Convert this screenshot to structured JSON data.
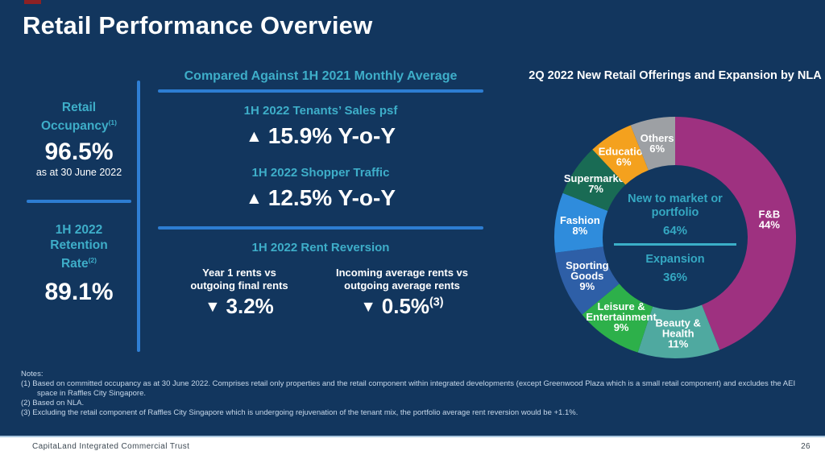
{
  "slide": {
    "title": "Retail Performance Overview",
    "footer_text": "CapitaLand Integrated Commercial Trust",
    "page_number": "26"
  },
  "left_panel": {
    "occupancy_label": "Retail Occupancy",
    "occupancy_sup": "(1)",
    "occupancy_value": "96.5%",
    "occupancy_date": "as at 30 June 2022",
    "retention_label": "1H 2022 Retention Rate",
    "retention_sup": "(2)",
    "retention_value": "89.1%"
  },
  "middle_panel": {
    "header": "Compared Against 1H 2021 Monthly Average",
    "tenants_sales_label": "1H 2022 Tenants’ Sales psf",
    "tenants_sales_value": "15.9% Y-o-Y",
    "shopper_traffic_label": "1H 2022 Shopper Traffic",
    "shopper_traffic_value": "12.5% Y-o-Y",
    "up_icon": "▲",
    "down_icon": "▼",
    "rent_reversion_header": "1H 2022 Rent Reversion",
    "rent_left_label_1": "Year 1 rents vs",
    "rent_left_label_2": "outgoing final rents",
    "rent_left_value": "3.2%",
    "rent_right_label_1": "Incoming average rents vs",
    "rent_right_label_2": "outgoing average rents",
    "rent_right_value": "0.5%",
    "rent_right_sup": "(3)"
  },
  "chart_data": {
    "type": "pie",
    "donut": true,
    "title": "2Q 2022 New Retail Offerings and Expansion by NLA",
    "start_angle_deg": 0,
    "clockwise": true,
    "legend_position": "on-segments",
    "segments": [
      {
        "name": "F&B",
        "label_lines": [
          "F&B"
        ],
        "value": 44,
        "display_value": "44%",
        "color": "#9E3180"
      },
      {
        "name": "Beauty & Health",
        "label_lines": [
          "Beauty &",
          "Health"
        ],
        "value": 11,
        "display_value": "11%",
        "color": "#4FA9A0"
      },
      {
        "name": "Leisure & Entertainment",
        "label_lines": [
          "Leisure &",
          "Entertainment"
        ],
        "value": 9,
        "display_value": "9%",
        "color": "#2DB04A"
      },
      {
        "name": "Sporting Goods",
        "label_lines": [
          "Sporting",
          "Goods"
        ],
        "value": 9,
        "display_value": "9%",
        "color": "#2E5FA7"
      },
      {
        "name": "Fashion",
        "label_lines": [
          "Fashion"
        ],
        "value": 8,
        "display_value": "8%",
        "color": "#2F8CDC"
      },
      {
        "name": "Supermarket",
        "label_lines": [
          "Supermarket"
        ],
        "value": 7,
        "display_value": "7%",
        "color": "#196B54"
      },
      {
        "name": "Education",
        "label_lines": [
          "Education"
        ],
        "value": 6,
        "display_value": "6%",
        "color": "#F4A11E"
      },
      {
        "name": "Others",
        "label_lines": [
          "Others"
        ],
        "value": 6,
        "display_value": "6%",
        "color": "#9DA0A4"
      }
    ],
    "center": {
      "top_label": "New to market or portfolio",
      "top_value": "64%",
      "bottom_label": "Expansion",
      "bottom_value": "36%"
    }
  },
  "notes": {
    "heading": "Notes:",
    "items": [
      "(1)   Based on committed occupancy as at 30 June 2022. Comprises retail only properties and the retail component within integrated developments (except Greenwood Plaza which is a small retail component) and excludes the AEI space in Raffles City Singapore.",
      "(2)   Based on NLA.",
      "(3)   Excluding the retail component of Raffles City Singapore which is undergoing rejuvenation of the tenant mix, the portfolio average rent reversion would be +1.1%."
    ]
  }
}
